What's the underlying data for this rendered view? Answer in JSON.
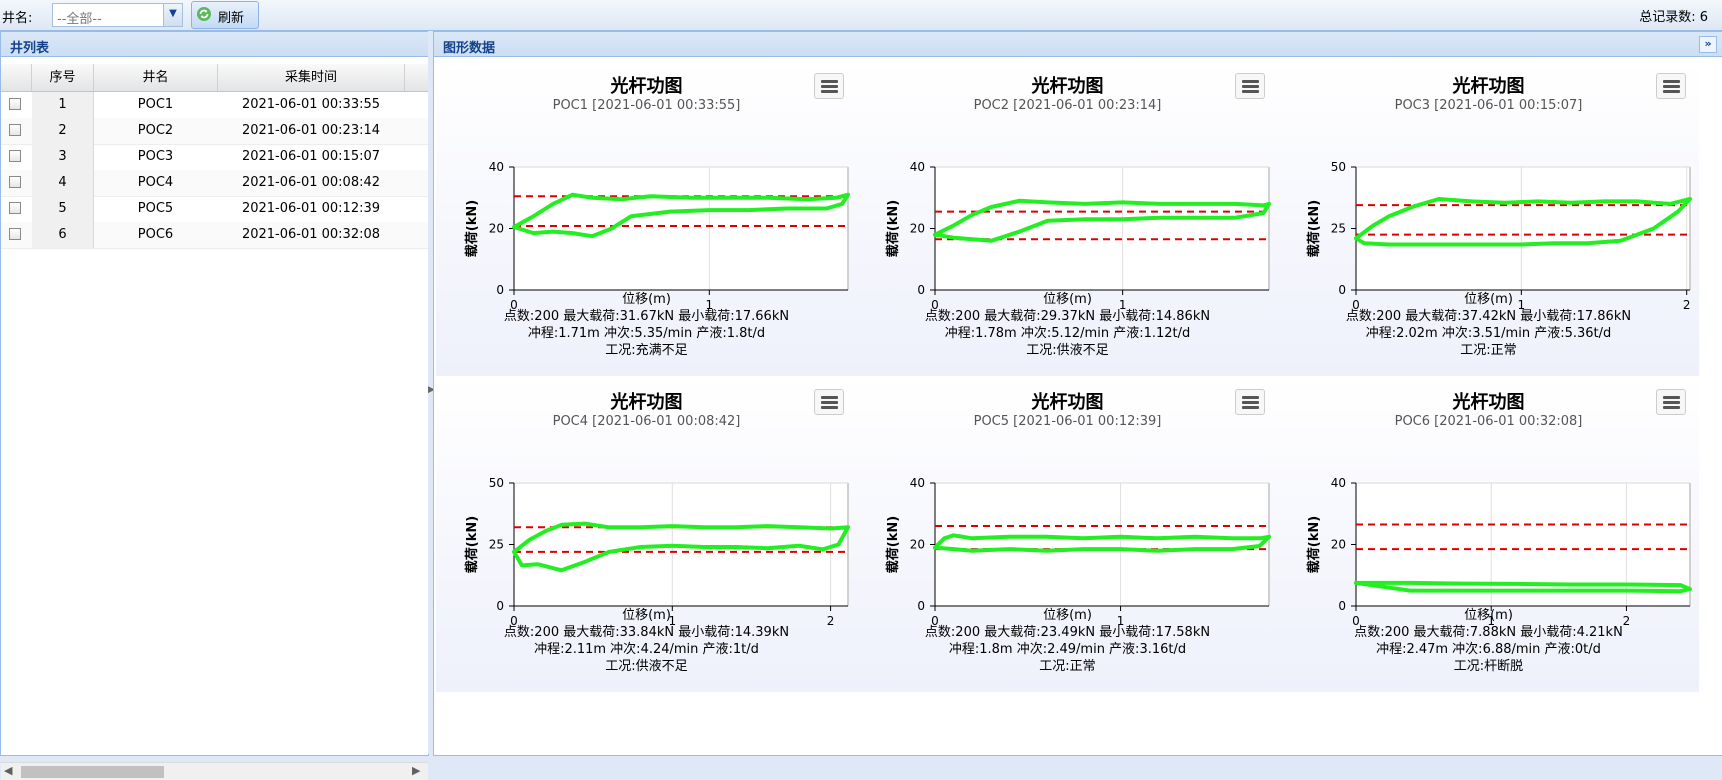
{
  "toolbar": {
    "well_label": "井名:",
    "well_select_value": "--全部--",
    "refresh_label": "刷新",
    "total_records": "总记录数: 6"
  },
  "well_list": {
    "title": "井列表",
    "columns": [
      "序号",
      "井名",
      "采集时间"
    ],
    "rows": [
      {
        "index": "1",
        "name": "POC1",
        "time": "2021-06-01 00:33:55"
      },
      {
        "index": "2",
        "name": "POC2",
        "time": "2021-06-01 00:23:14"
      },
      {
        "index": "3",
        "name": "POC3",
        "time": "2021-06-01 00:15:07"
      },
      {
        "index": "4",
        "name": "POC4",
        "time": "2021-06-01 00:08:42"
      },
      {
        "index": "5",
        "name": "POC5",
        "time": "2021-06-01 00:12:39"
      },
      {
        "index": "6",
        "name": "POC6",
        "time": "2021-06-01 00:32:08"
      }
    ]
  },
  "graph_panel": {
    "title": "图形数据"
  },
  "colors": {
    "curve": "#22ee22",
    "ref_line": "#dd0000",
    "panel_title": "#15428b"
  },
  "chart_data": [
    {
      "type": "line",
      "title": "光杆功图",
      "subtitle": "POC1 [2021-06-01 00:33:55]",
      "xlabel": "位移(m)",
      "ylabel": "载荷(kN)",
      "xlim": [
        0,
        1.71
      ],
      "ylim": [
        0,
        40
      ],
      "xticks": [
        0,
        1
      ],
      "yticks": [
        0,
        20,
        40
      ],
      "ref_lines": [
        30.5,
        20.8
      ],
      "x": [
        0,
        0.1,
        0.2,
        0.3,
        0.4,
        0.55,
        0.7,
        0.9,
        1.1,
        1.3,
        1.5,
        1.65,
        1.71,
        1.68,
        1.6,
        1.4,
        1.2,
        1.0,
        0.8,
        0.6,
        0.5,
        0.4,
        0.3,
        0.2,
        0.1,
        0
      ],
      "y": [
        20.5,
        24,
        28,
        31,
        30,
        29.5,
        30.5,
        30,
        30,
        30,
        29.5,
        30,
        31,
        28,
        26.5,
        26.5,
        26,
        26,
        25.5,
        24,
        20,
        17.5,
        18.5,
        19,
        18.5,
        20.5
      ],
      "summary": [
        "点数:200 最大载荷:31.67kN 最小载荷:17.66kN",
        "冲程:1.71m 冲次:5.35/min 产液:1.8t/d",
        "工况:充满不足"
      ]
    },
    {
      "type": "line",
      "title": "光杆功图",
      "subtitle": "POC2 [2021-06-01 00:23:14]",
      "xlabel": "位移(m)",
      "ylabel": "载荷(kN)",
      "xlim": [
        0,
        1.78
      ],
      "ylim": [
        0,
        40
      ],
      "xticks": [
        0,
        1
      ],
      "yticks": [
        0,
        20,
        40
      ],
      "ref_lines": [
        25.5,
        16.5
      ],
      "x": [
        0,
        0.1,
        0.2,
        0.3,
        0.45,
        0.6,
        0.8,
        1.0,
        1.2,
        1.4,
        1.6,
        1.75,
        1.78,
        1.75,
        1.6,
        1.4,
        1.2,
        1.0,
        0.8,
        0.6,
        0.45,
        0.3,
        0.2,
        0.1,
        0
      ],
      "y": [
        18,
        21,
        24.5,
        27,
        29,
        28.5,
        28,
        28.5,
        28,
        28,
        28,
        27.5,
        28,
        25,
        23.5,
        23.5,
        23.5,
        23,
        23,
        22.5,
        19,
        16,
        16.5,
        17,
        18
      ],
      "summary": [
        "点数:200 最大载荷:29.37kN 最小载荷:14.86kN",
        "冲程:1.78m 冲次:5.12/min 产液:1.12t/d",
        "工况:供液不足"
      ]
    },
    {
      "type": "line",
      "title": "光杆功图",
      "subtitle": "POC3 [2021-06-01 00:15:07]",
      "xlabel": "位移(m)",
      "ylabel": "载荷(kN)",
      "xlim": [
        0,
        2.02
      ],
      "ylim": [
        0,
        50
      ],
      "xticks": [
        0,
        1,
        2
      ],
      "yticks": [
        0,
        25,
        50
      ],
      "ref_lines": [
        34.5,
        22.5
      ],
      "x": [
        0,
        0.1,
        0.2,
        0.35,
        0.5,
        0.7,
        0.9,
        1.1,
        1.3,
        1.5,
        1.7,
        1.9,
        2.02,
        1.95,
        1.8,
        1.6,
        1.4,
        1.2,
        1.0,
        0.8,
        0.6,
        0.4,
        0.2,
        0.05,
        0
      ],
      "y": [
        21,
        26,
        30,
        34,
        37,
        36,
        35.5,
        36,
        35.5,
        36,
        36,
        35,
        37,
        32,
        25,
        20,
        19,
        19,
        18.5,
        18.5,
        18.5,
        18.5,
        18.5,
        19,
        21
      ],
      "summary": [
        "点数:200 最大载荷:37.42kN 最小载荷:17.86kN",
        "冲程:2.02m 冲次:3.51/min 产液:5.36t/d",
        "工况:正常"
      ]
    },
    {
      "type": "line",
      "title": "光杆功图",
      "subtitle": "POC4 [2021-06-01 00:08:42]",
      "xlabel": "位移(m)",
      "ylabel": "载荷(kN)",
      "xlim": [
        0,
        2.11
      ],
      "ylim": [
        0,
        50
      ],
      "xticks": [
        0,
        1,
        2
      ],
      "yticks": [
        0,
        25,
        50
      ],
      "ref_lines": [
        32,
        22
      ],
      "x": [
        0,
        0.1,
        0.2,
        0.3,
        0.45,
        0.6,
        0.8,
        1.0,
        1.2,
        1.4,
        1.6,
        1.8,
        2.0,
        2.11,
        2.05,
        1.95,
        1.8,
        1.6,
        1.4,
        1.2,
        1.0,
        0.8,
        0.6,
        0.45,
        0.3,
        0.15,
        0.05,
        0
      ],
      "y": [
        22,
        27,
        30.5,
        33,
        33.5,
        32,
        32,
        32.5,
        32,
        32,
        32.5,
        32,
        31.5,
        32,
        25,
        23,
        24.5,
        23.5,
        24,
        24,
        24.5,
        24,
        22,
        18,
        14.5,
        17,
        16.5,
        22
      ],
      "summary": [
        "点数:200 最大载荷:33.84kN 最小载荷:14.39kN",
        "冲程:2.11m 冲次:4.24/min 产液:1t/d",
        "工况:供液不足"
      ]
    },
    {
      "type": "line",
      "title": "光杆功图",
      "subtitle": "POC5 [2021-06-01 00:12:39]",
      "xlabel": "位移(m)",
      "ylabel": "载荷(kN)",
      "xlim": [
        0,
        1.8
      ],
      "ylim": [
        0,
        40
      ],
      "xticks": [
        0,
        1
      ],
      "yticks": [
        0,
        20,
        40
      ],
      "ref_lines": [
        26,
        18.5
      ],
      "x": [
        0,
        0.05,
        0.1,
        0.2,
        0.4,
        0.6,
        0.8,
        1.0,
        1.2,
        1.4,
        1.6,
        1.75,
        1.8,
        1.75,
        1.6,
        1.4,
        1.2,
        1.0,
        0.8,
        0.6,
        0.4,
        0.2,
        0.1,
        0
      ],
      "y": [
        19,
        22,
        23,
        22,
        22.5,
        22.5,
        22,
        22.5,
        22,
        22.5,
        22,
        22,
        22.5,
        19.5,
        18.5,
        18.5,
        18,
        18.5,
        18.5,
        18,
        18.5,
        18,
        18.5,
        19
      ],
      "summary": [
        "点数:200 最大载荷:23.49kN 最小载荷:17.58kN",
        "冲程:1.8m 冲次:2.49/min 产液:3.16t/d",
        "工况:正常"
      ]
    },
    {
      "type": "line",
      "title": "光杆功图",
      "subtitle": "POC6 [2021-06-01 00:32:08]",
      "xlabel": "位移(m)",
      "ylabel": "载荷(kN)",
      "xlim": [
        0,
        2.47
      ],
      "ylim": [
        0,
        40
      ],
      "xticks": [
        0,
        1,
        2
      ],
      "yticks": [
        0,
        20,
        40
      ],
      "ref_lines": [
        26.5,
        18.5
      ],
      "x": [
        0,
        0.4,
        0.8,
        1.2,
        1.6,
        2.0,
        2.4,
        2.47,
        2.4,
        2.0,
        1.6,
        1.2,
        0.8,
        0.4,
        0
      ],
      "y": [
        7.5,
        7.5,
        7.3,
        7.2,
        7,
        7,
        6.8,
        5.5,
        4.8,
        5,
        5,
        5,
        5,
        5,
        7.5
      ],
      "summary": [
        "点数:200 最大载荷:7.88kN 最小载荷:4.21kN",
        "冲程:2.47m 冲次:6.88/min 产液:0t/d",
        "工况:杆断脱"
      ]
    }
  ]
}
